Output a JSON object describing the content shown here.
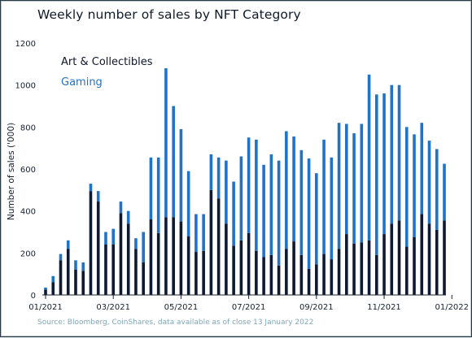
{
  "chart_data": {
    "type": "bar",
    "stacked": true,
    "title": "Weekly number of sales by NFT Category",
    "ylabel": "Number of sales ('000)",
    "xlabel": "",
    "ylim": [
      0,
      1200
    ],
    "yticks": [
      0,
      200,
      400,
      600,
      800,
      1000,
      1200
    ],
    "xtick_labels": [
      "01/2021",
      "03/2021",
      "05/2021",
      "07/2021",
      "09/2021",
      "11/2021",
      "01/2022"
    ],
    "xtick_indices": [
      0,
      9,
      18,
      27,
      36,
      45,
      54
    ],
    "legend": "top-left",
    "grid": false,
    "series": [
      {
        "name": "Art & Collectibles",
        "color": "#0e1a33",
        "values": [
          25,
          60,
          165,
          220,
          120,
          115,
          495,
          445,
          240,
          240,
          390,
          340,
          220,
          155,
          360,
          295,
          370,
          370,
          350,
          280,
          205,
          210,
          500,
          460,
          340,
          235,
          260,
          295,
          210,
          180,
          190,
          140,
          220,
          255,
          190,
          125,
          145,
          195,
          170,
          220,
          290,
          245,
          250,
          260,
          190,
          290,
          340,
          355,
          230,
          275,
          385,
          340,
          310,
          355
        ]
      },
      {
        "name": "Gaming",
        "color": "#1f73c8",
        "values": [
          10,
          30,
          30,
          40,
          45,
          40,
          35,
          50,
          60,
          75,
          55,
          60,
          50,
          145,
          295,
          360,
          710,
          530,
          440,
          310,
          180,
          175,
          170,
          195,
          300,
          305,
          400,
          455,
          530,
          440,
          480,
          500,
          560,
          500,
          500,
          525,
          435,
          545,
          485,
          600,
          525,
          525,
          565,
          790,
          765,
          670,
          660,
          645,
          570,
          490,
          435,
          395,
          385,
          270
        ]
      }
    ],
    "source": "Source: Bloomberg, CoinShares, data available as of close 13 January 2022"
  }
}
